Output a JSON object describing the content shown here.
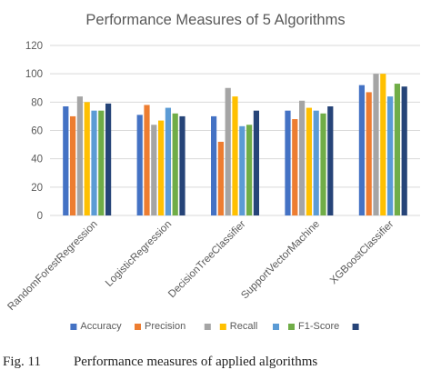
{
  "chart_data": {
    "type": "bar",
    "title": "Performance Measures of 5 Algorithms",
    "categories": [
      "RandomForestRegression",
      "LogisticRegression",
      "DecisionTreeClassifier",
      "SupportVectorMachine",
      "XGBoostClassifier"
    ],
    "ylim": [
      0,
      120
    ],
    "yticks": [
      0,
      20,
      40,
      60,
      80,
      100,
      120
    ],
    "grid": true,
    "legend_position": "bottom",
    "series": [
      {
        "name": "Accuracy",
        "color": "#4472C4",
        "values": [
          77,
          71,
          70,
          74,
          92
        ]
      },
      {
        "name": "Precision",
        "color": "#ED7D31",
        "values": [
          70,
          78,
          52,
          68,
          87
        ]
      },
      {
        "name": "",
        "color": "#A5A5A5",
        "values": [
          84,
          64,
          90,
          81,
          100
        ]
      },
      {
        "name": "Recall",
        "color": "#FFC000",
        "values": [
          80,
          67,
          84,
          76,
          100
        ]
      },
      {
        "name": "",
        "color": "#5B9BD5",
        "values": [
          74,
          76,
          63,
          74,
          84
        ]
      },
      {
        "name": "F1-Score",
        "color": "#70AD47",
        "values": [
          74,
          72,
          64,
          72,
          93
        ]
      },
      {
        "name": "",
        "color": "#264478",
        "values": [
          79,
          70,
          74,
          77,
          91
        ]
      }
    ]
  },
  "caption": {
    "label": "Fig. 11",
    "text": "Performance measures of applied algorithms"
  }
}
